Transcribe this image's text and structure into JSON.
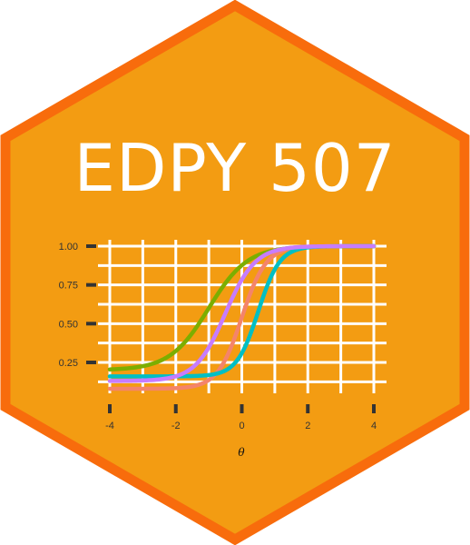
{
  "sticker": {
    "title": "EDPY 507",
    "fill_color": "#f39c12",
    "border_color": "#f86c0c",
    "text_color": "#ffffff"
  },
  "chart_data": {
    "type": "line",
    "xlabel": "θ",
    "ylabel": "",
    "title": "",
    "xlim": [
      -4,
      4
    ],
    "ylim": [
      0.08,
      1.0
    ],
    "x_ticks": [
      -4,
      -2,
      0,
      2,
      4
    ],
    "x_tick_labels": [
      "-4",
      "-2",
      "0",
      "2",
      "4"
    ],
    "y_ticks": [
      0.25,
      0.5,
      0.75,
      1.0
    ],
    "y_tick_labels": [
      "0.25",
      "0.50",
      "0.75",
      "1.00"
    ],
    "grid": true,
    "legend": "none",
    "series": [
      {
        "color": "#f4846a",
        "a": 1.6,
        "b": 0.0,
        "c": 0.08,
        "x": [
          -4,
          -3,
          -2,
          -1,
          0,
          1,
          2,
          3,
          4
        ],
        "values": [
          0.081,
          0.087,
          0.12,
          0.24,
          0.54,
          0.84,
          0.96,
          0.99,
          1.0
        ]
      },
      {
        "color": "#7cae00",
        "a": 1.0,
        "b": -1.0,
        "c": 0.2,
        "x": [
          -4,
          -3,
          -2,
          -1,
          0,
          1,
          2,
          3,
          4
        ],
        "values": [
          0.21,
          0.29,
          0.4,
          0.6,
          0.78,
          0.9,
          0.96,
          0.98,
          0.99
        ]
      },
      {
        "color": "#00bfc4",
        "a": 1.8,
        "b": 0.5,
        "c": 0.16,
        "x": [
          -4,
          -3,
          -2,
          -1,
          0,
          1,
          2,
          3,
          4
        ],
        "values": [
          0.16,
          0.16,
          0.17,
          0.19,
          0.35,
          0.74,
          0.94,
          0.99,
          1.0
        ]
      },
      {
        "color": "#c77cff",
        "a": 1.3,
        "b": -0.5,
        "c": 0.13,
        "x": [
          -4,
          -3,
          -2,
          -1,
          0,
          1,
          2,
          3,
          4
        ],
        "values": [
          0.14,
          0.17,
          0.25,
          0.43,
          0.71,
          0.9,
          0.97,
          0.99,
          1.0
        ]
      }
    ]
  }
}
